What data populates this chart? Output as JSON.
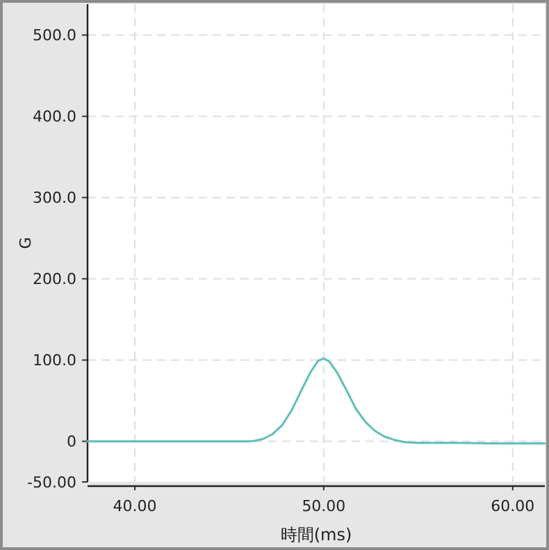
{
  "chart_data": {
    "type": "line",
    "xlabel": "時間(ms)",
    "ylabel": "G",
    "xlim": [
      37.5,
      61.7
    ],
    "ylim": [
      -50,
      538
    ],
    "xticks": [
      {
        "value": 40,
        "label": "40.00"
      },
      {
        "value": 50,
        "label": "50.00"
      },
      {
        "value": 60,
        "label": "60.00"
      }
    ],
    "yticks": [
      {
        "value": -50,
        "label": "-50.00"
      },
      {
        "value": 0,
        "label": "0"
      },
      {
        "value": 100,
        "label": "100.0"
      },
      {
        "value": 200,
        "label": "200.0"
      },
      {
        "value": 300,
        "label": "300.0"
      },
      {
        "value": 400,
        "label": "400.0"
      },
      {
        "value": 500,
        "label": "500.0"
      }
    ],
    "grid": true,
    "marker": "none",
    "line_style": "solid",
    "series": [
      {
        "color": "#5fbfb6",
        "x": [
          37.5,
          46.0,
          46.3,
          46.8,
          47.3,
          47.8,
          48.3,
          48.8,
          49.3,
          49.7,
          50.0,
          50.3,
          50.7,
          51.2,
          51.7,
          52.2,
          52.7,
          53.2,
          53.7,
          54.3,
          55.0,
          57.0,
          59.0,
          61.7
        ],
        "values": [
          0,
          0,
          0.5,
          3,
          9,
          20,
          38,
          62,
          85,
          99,
          102,
          98,
          85,
          63,
          40,
          24,
          13,
          6,
          2,
          -1,
          -2,
          -2,
          -2.5,
          -2.5
        ]
      }
    ]
  }
}
